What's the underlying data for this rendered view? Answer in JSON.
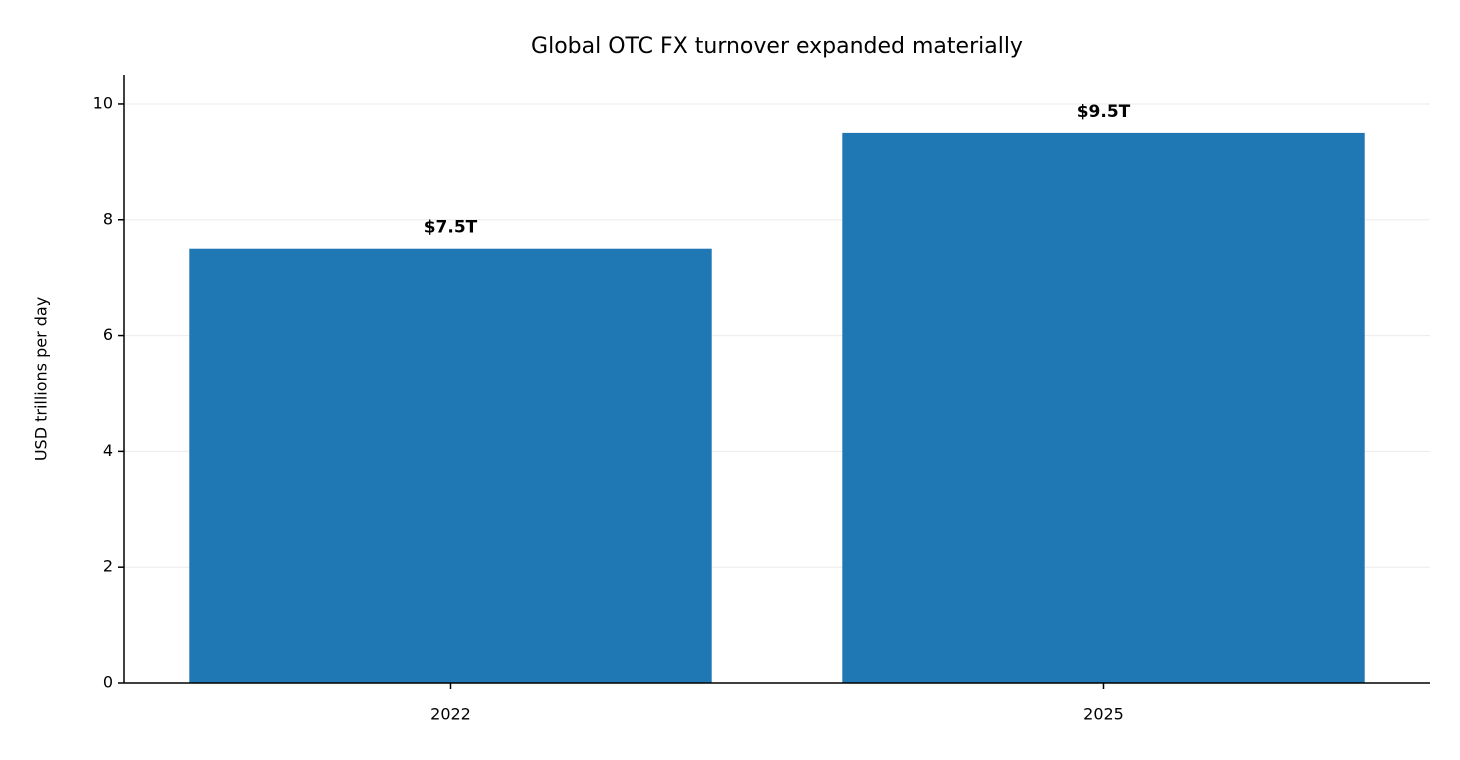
{
  "chart_data": {
    "type": "bar",
    "title": "Global OTC FX turnover expanded materially",
    "y_label": "USD trillions per day",
    "categories": [
      "2022",
      "2025"
    ],
    "values": [
      7.5,
      9.5
    ],
    "value_labels": [
      "$7.5T",
      "$9.5T"
    ],
    "color": "#1f77b4",
    "ylim": [
      0,
      10.5
    ],
    "yticks": [
      0,
      2,
      4,
      6,
      8,
      10
    ],
    "grid": true
  }
}
